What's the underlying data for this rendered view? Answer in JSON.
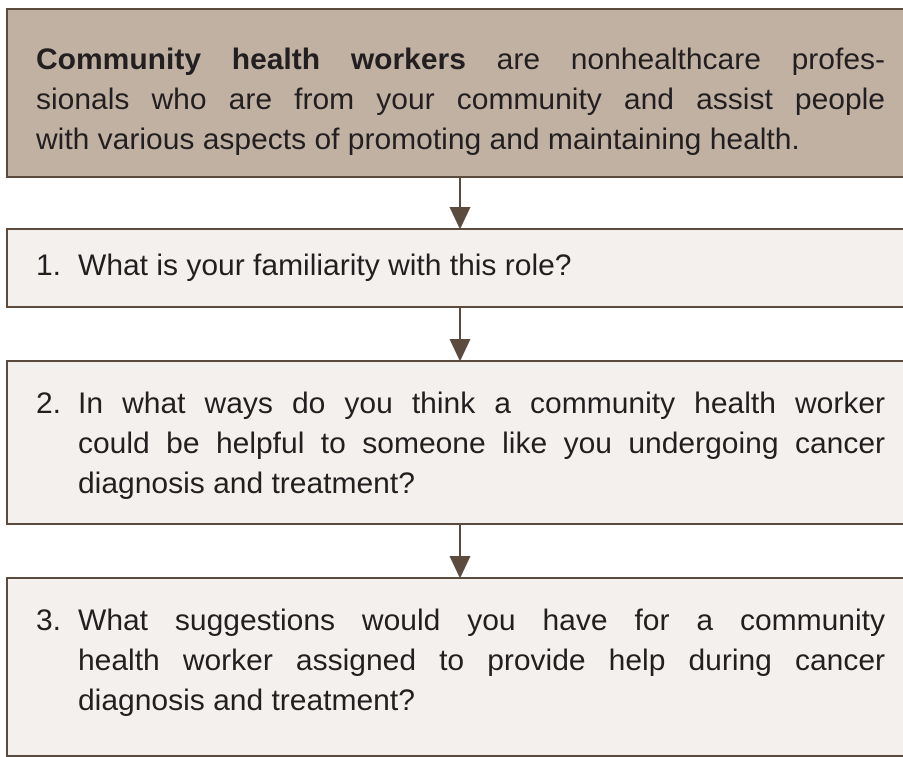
{
  "header": {
    "bold": "Community health workers",
    "lines": [
      "are nonhealthcare profes-",
      "sionals who are from your community and assist people",
      "with various aspects of promoting and maintaining health."
    ]
  },
  "questions": [
    {
      "number": "1.",
      "lines": [
        "What is your familiarity with this role?"
      ]
    },
    {
      "number": "2.",
      "lines": [
        "In what ways do you think a community health worker",
        "could be helpful to someone like you undergoing cancer",
        "diagnosis and treatment?"
      ]
    },
    {
      "number": "3.",
      "lines": [
        "What suggestions would you have for a community",
        "health worker assigned to provide help during cancer",
        "diagnosis and treatment?"
      ]
    }
  ]
}
